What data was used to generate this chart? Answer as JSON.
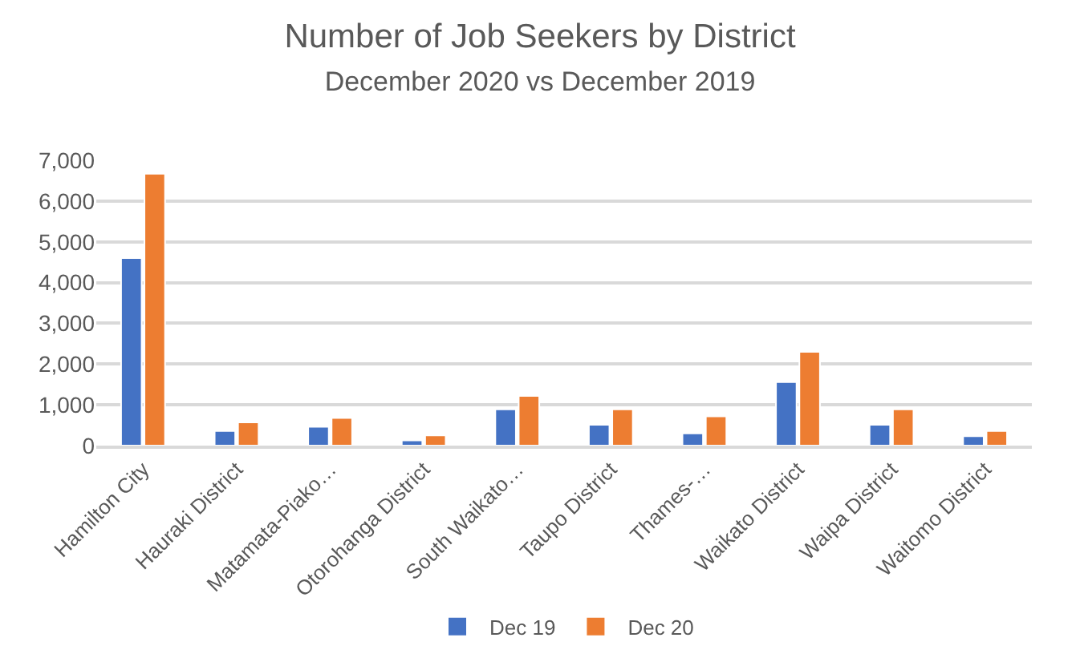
{
  "chart_data": {
    "type": "bar",
    "title": "Number of Job Seekers by District",
    "subtitle": "December 2020 vs December 2019",
    "categories": [
      "Hamilton City",
      "Hauraki District",
      "Matamata-Piako…",
      "Otorohanga District",
      "South Waikato…",
      "Taupo District",
      "Thames-…",
      "Waikato District",
      "Waipa District",
      "Waitomo District"
    ],
    "series": [
      {
        "name": "Dec 19",
        "color": "#4472c4",
        "values": [
          4600,
          360,
          460,
          130,
          890,
          510,
          300,
          1560,
          510,
          230
        ]
      },
      {
        "name": "Dec 20",
        "color": "#ed7d31",
        "values": [
          6670,
          570,
          680,
          250,
          1220,
          890,
          720,
          2300,
          890,
          360
        ]
      }
    ],
    "ylim": [
      0,
      7000
    ],
    "yticks": [
      {
        "value": 0,
        "label": "0"
      },
      {
        "value": 1000,
        "label": "1,000"
      },
      {
        "value": 2000,
        "label": "2,000"
      },
      {
        "value": 3000,
        "label": "3,000"
      },
      {
        "value": 4000,
        "label": "4,000"
      },
      {
        "value": 5000,
        "label": "5,000"
      },
      {
        "value": 6000,
        "label": "6,000"
      },
      {
        "value": 7000,
        "label": "7,000"
      }
    ],
    "grid": "y",
    "legend": "bottom"
  }
}
